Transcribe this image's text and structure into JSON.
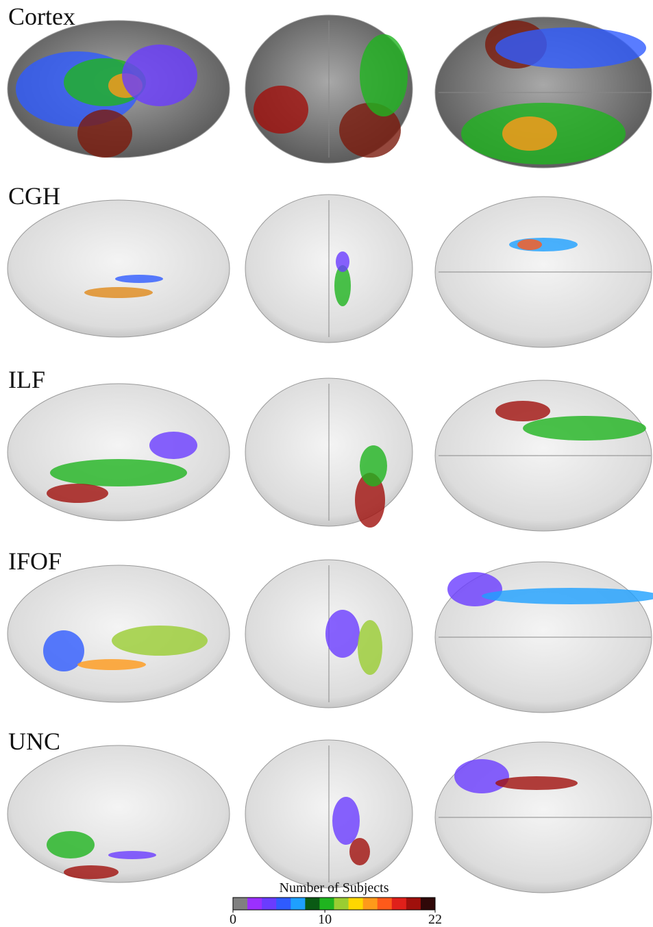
{
  "rows": [
    {
      "label": "Cortex"
    },
    {
      "label": "CGH"
    },
    {
      "label": "ILF"
    },
    {
      "label": "IFOF"
    },
    {
      "label": "UNC"
    }
  ],
  "colorbar": {
    "title": "Number of Subjects",
    "lim": [
      0,
      22
    ],
    "ticks": [
      0,
      10,
      22
    ],
    "colors": [
      "#808080",
      "#9b30ff",
      "#6a3cff",
      "#2f5bff",
      "#1ea0ff",
      "#0a5a14",
      "#1fb41f",
      "#9acd32",
      "#ffd700",
      "#ff9a1a",
      "#ff5a1a",
      "#e0201a",
      "#a0100c",
      "#300808"
    ]
  }
}
